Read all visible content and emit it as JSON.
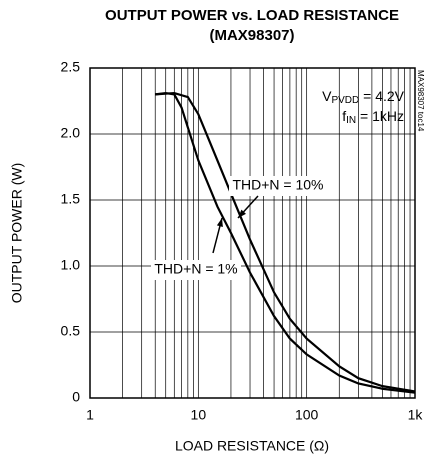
{
  "chart_data": {
    "type": "line",
    "title": "OUTPUT POWER vs. LOAD RESISTANCE",
    "subtitle": "(MAX98307)",
    "x_label": "LOAD RESISTANCE (Ω)",
    "y_label": "OUTPUT POWER (W)",
    "x_log": true,
    "xlim": [
      1,
      1000
    ],
    "xticks": [
      1,
      10,
      100,
      {
        "value": 1000,
        "label": "1k"
      }
    ],
    "x_minor_grid": [
      2,
      3,
      4,
      5,
      6,
      7,
      8,
      9,
      20,
      30,
      40,
      50,
      60,
      70,
      80,
      90,
      200,
      300,
      400,
      500,
      600,
      700,
      800,
      900
    ],
    "ylim": [
      0,
      2.5
    ],
    "yticks": [
      0,
      0.5,
      {
        "value": 1,
        "label": "1.0"
      },
      1.5,
      {
        "value": 2,
        "label": "2.0"
      },
      2.5
    ],
    "grid": true,
    "series": [
      {
        "name": "THD+N = 1%",
        "color": "#000000",
        "x": [
          4,
          5,
          6,
          7,
          8,
          10,
          15,
          20,
          30,
          50,
          70,
          100,
          200,
          300,
          500,
          1000
        ],
        "values": [
          2.3,
          2.31,
          2.3,
          2.2,
          2.05,
          1.8,
          1.45,
          1.25,
          0.95,
          0.62,
          0.45,
          0.33,
          0.17,
          0.11,
          0.07,
          0.04
        ]
      },
      {
        "name": "THD+N = 10%",
        "color": "#000000",
        "x": [
          4,
          6,
          8,
          10,
          15,
          20,
          30,
          50,
          70,
          100,
          200,
          300,
          500,
          1000
        ],
        "values": [
          2.3,
          2.31,
          2.28,
          2.15,
          1.8,
          1.55,
          1.2,
          0.8,
          0.6,
          0.45,
          0.24,
          0.15,
          0.09,
          0.05
        ]
      }
    ],
    "conditions": {
      "v": "V",
      "v_sub": "PVDD",
      "v_rest": " = 4.2V",
      "f": "f",
      "f_sub": "IN",
      "f_rest": " = 1kHz"
    },
    "side_note": "MAX98307 toc14"
  }
}
